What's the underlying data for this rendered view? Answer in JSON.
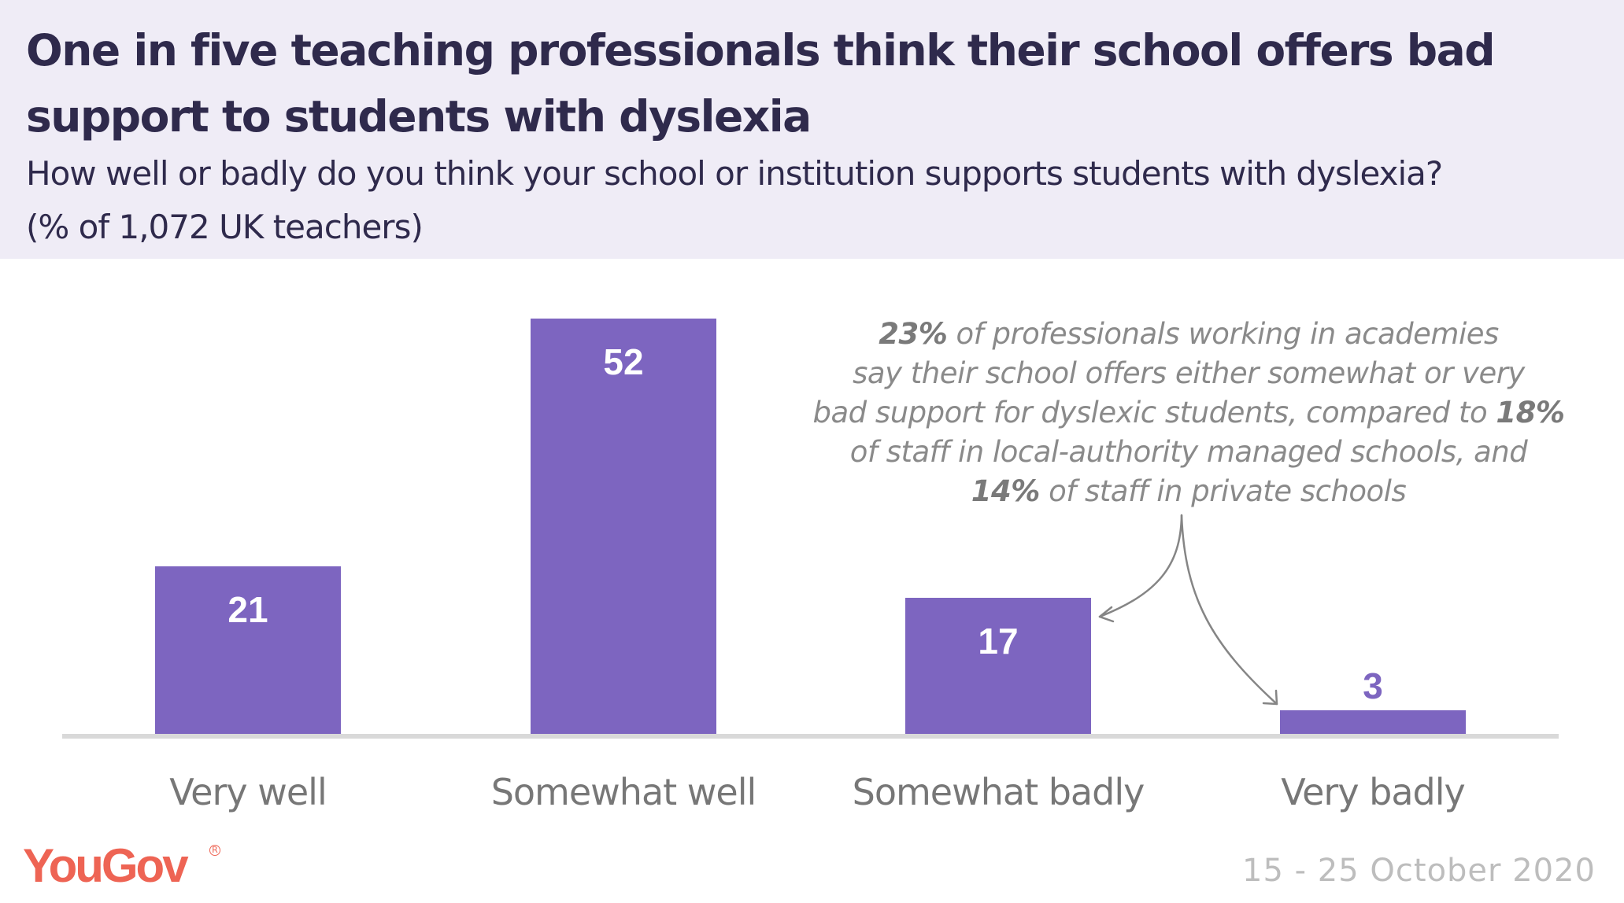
{
  "header": {
    "title": "One in five teaching professionals think their school offers bad support to students with dyslexia",
    "subtitle_line1": "How well or badly do you think your school or institution supports students with dyslexia?",
    "subtitle_line2": "(% of 1,072 UK teachers)"
  },
  "annotation": {
    "line1_bold": "23%",
    "line1_rest": " of professionals working in academies",
    "line2": "say their school offers either somewhat or very",
    "line3_rest": "bad support for dyslexic students, compared to ",
    "line3_bold": "18%",
    "line4": "of staff in local-authority managed schools, and",
    "line5_bold": "14%",
    "line5_rest": " of staff in private schools"
  },
  "footer": {
    "logo": "YouGov",
    "logo_mark": "R",
    "date": "15 - 25 October 2020"
  },
  "colors": {
    "bar": "#7d65c0",
    "header_bg": "#efecf6",
    "title": "#2f2a4c",
    "axis": "#d9d9d9",
    "logo": "#ee6454",
    "annotation": "#8a8a8a",
    "category_label": "#777777",
    "date": "#bdbdbd"
  },
  "chart_data": {
    "type": "bar",
    "title": "One in five teaching professionals think their school offers bad support to students with dyslexia",
    "subtitle": "How well or badly do you think your school or institution supports students with dyslexia? (% of 1,072 UK teachers)",
    "categories": [
      "Very well",
      "Somewhat well",
      "Somewhat badly",
      "Very badly"
    ],
    "values": [
      21,
      52,
      17,
      3
    ],
    "value_labels": [
      "21",
      "52",
      "17",
      "3"
    ],
    "xlabel": "",
    "ylabel": "",
    "ylim": [
      0,
      55
    ],
    "grid": false,
    "legend": "none",
    "annotations": [
      "23% of professionals working in academies say their school offers either somewhat or very bad support for dyslexic students, compared to 18% of staff in local-authority managed schools, and 14% of staff in private schools"
    ],
    "source_date": "15 - 25 October 2020"
  }
}
